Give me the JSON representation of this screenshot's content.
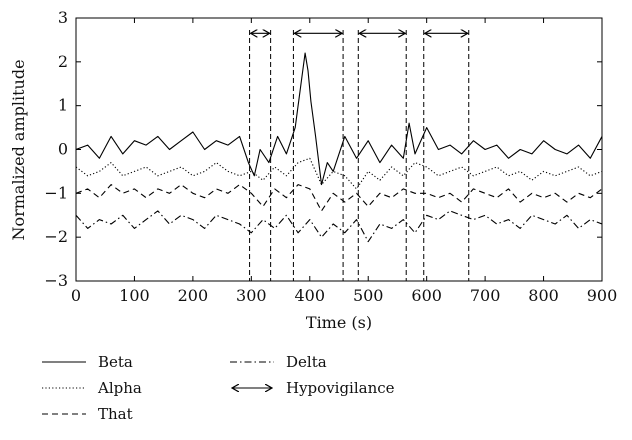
{
  "chart_data": {
    "type": "line",
    "title": "",
    "xlabel": "Time (s)",
    "ylabel": "Normalized amplitude",
    "xlim": [
      0,
      900
    ],
    "ylim": [
      -3,
      3
    ],
    "x_ticks": [
      0,
      100,
      200,
      300,
      400,
      500,
      600,
      700,
      800,
      900
    ],
    "y_ticks": [
      -3,
      -2,
      -1,
      0,
      1,
      2,
      3
    ],
    "grid": false,
    "legend_position": "bottom",
    "series": [
      {
        "name": "Beta",
        "style": "solid",
        "color": "#000000",
        "x": [
          0,
          20,
          40,
          60,
          80,
          100,
          120,
          140,
          160,
          180,
          200,
          220,
          240,
          260,
          280,
          295,
          305,
          315,
          330,
          345,
          360,
          375,
          385,
          392,
          397,
          402,
          410,
          420,
          430,
          440,
          460,
          480,
          500,
          520,
          540,
          560,
          570,
          580,
          600,
          620,
          640,
          660,
          680,
          700,
          720,
          740,
          760,
          780,
          800,
          820,
          840,
          860,
          880,
          900
        ],
        "y": [
          0.0,
          0.1,
          -0.2,
          0.3,
          -0.1,
          0.2,
          0.1,
          0.3,
          0.0,
          0.2,
          0.4,
          0.0,
          0.2,
          0.1,
          0.3,
          -0.3,
          -0.6,
          0.0,
          -0.3,
          0.3,
          -0.1,
          0.5,
          1.5,
          2.2,
          1.8,
          1.1,
          0.3,
          -0.8,
          -0.3,
          -0.5,
          0.3,
          -0.2,
          0.2,
          -0.3,
          0.1,
          -0.2,
          0.6,
          -0.1,
          0.5,
          0.0,
          0.1,
          -0.1,
          0.2,
          0.0,
          0.1,
          -0.2,
          0.0,
          -0.1,
          0.2,
          0.0,
          -0.1,
          0.1,
          -0.2,
          0.3
        ]
      },
      {
        "name": "Alpha",
        "style": "dotted",
        "color": "#000000",
        "x": [
          0,
          20,
          40,
          60,
          80,
          100,
          120,
          140,
          160,
          180,
          200,
          220,
          240,
          260,
          280,
          300,
          320,
          340,
          360,
          380,
          400,
          420,
          440,
          460,
          480,
          500,
          520,
          540,
          560,
          580,
          600,
          620,
          640,
          660,
          680,
          700,
          720,
          740,
          760,
          780,
          800,
          820,
          840,
          860,
          880,
          900
        ],
        "y": [
          -0.4,
          -0.6,
          -0.5,
          -0.3,
          -0.6,
          -0.5,
          -0.4,
          -0.6,
          -0.5,
          -0.4,
          -0.6,
          -0.5,
          -0.3,
          -0.5,
          -0.6,
          -0.5,
          -0.7,
          -0.4,
          -0.6,
          -0.3,
          -0.2,
          -0.8,
          -0.5,
          -0.6,
          -0.9,
          -0.5,
          -0.7,
          -0.4,
          -0.6,
          -0.3,
          -0.4,
          -0.6,
          -0.5,
          -0.4,
          -0.6,
          -0.5,
          -0.4,
          -0.6,
          -0.5,
          -0.7,
          -0.5,
          -0.6,
          -0.5,
          -0.4,
          -0.6,
          -0.5
        ]
      },
      {
        "name": "That",
        "style": "dashed",
        "color": "#000000",
        "x": [
          0,
          20,
          40,
          60,
          80,
          100,
          120,
          140,
          160,
          180,
          200,
          220,
          240,
          260,
          280,
          300,
          320,
          340,
          360,
          380,
          400,
          420,
          440,
          460,
          480,
          500,
          520,
          540,
          560,
          580,
          600,
          620,
          640,
          660,
          680,
          700,
          720,
          740,
          760,
          780,
          800,
          820,
          840,
          860,
          880,
          900
        ],
        "y": [
          -1.0,
          -0.9,
          -1.1,
          -0.8,
          -1.0,
          -0.9,
          -1.1,
          -0.9,
          -1.0,
          -0.8,
          -1.0,
          -1.1,
          -0.9,
          -1.0,
          -0.8,
          -1.0,
          -1.3,
          -0.9,
          -1.1,
          -0.8,
          -0.9,
          -1.4,
          -1.0,
          -1.2,
          -1.0,
          -1.3,
          -1.0,
          -1.1,
          -0.9,
          -1.0,
          -1.0,
          -1.1,
          -1.0,
          -1.2,
          -0.9,
          -1.0,
          -1.1,
          -0.9,
          -1.2,
          -1.0,
          -1.1,
          -1.0,
          -1.2,
          -1.0,
          -1.1,
          -0.9
        ]
      },
      {
        "name": "Delta",
        "style": "dashdot",
        "color": "#000000",
        "x": [
          0,
          20,
          40,
          60,
          80,
          100,
          120,
          140,
          160,
          180,
          200,
          220,
          240,
          260,
          280,
          300,
          320,
          340,
          360,
          380,
          400,
          420,
          440,
          460,
          480,
          500,
          520,
          540,
          560,
          580,
          600,
          620,
          640,
          660,
          680,
          700,
          720,
          740,
          760,
          780,
          800,
          820,
          840,
          860,
          880,
          900
        ],
        "y": [
          -1.5,
          -1.8,
          -1.6,
          -1.7,
          -1.5,
          -1.8,
          -1.6,
          -1.4,
          -1.7,
          -1.5,
          -1.6,
          -1.8,
          -1.5,
          -1.6,
          -1.7,
          -1.9,
          -1.6,
          -1.8,
          -1.5,
          -1.9,
          -1.6,
          -2.0,
          -1.7,
          -1.9,
          -1.6,
          -2.1,
          -1.7,
          -1.8,
          -1.6,
          -1.9,
          -1.5,
          -1.6,
          -1.4,
          -1.5,
          -1.6,
          -1.5,
          -1.7,
          -1.6,
          -1.8,
          -1.5,
          -1.6,
          -1.7,
          -1.5,
          -1.8,
          -1.6,
          -1.7
        ]
      }
    ],
    "annotations": [
      {
        "name": "Hypovigilance",
        "type": "interval",
        "x_start": 297,
        "x_end": 333,
        "y": 2.65
      },
      {
        "name": "Hypovigilance",
        "type": "interval",
        "x_start": 372,
        "x_end": 457,
        "y": 2.65
      },
      {
        "name": "Hypovigilance",
        "type": "interval",
        "x_start": 483,
        "x_end": 565,
        "y": 2.65
      },
      {
        "name": "Hypovigilance",
        "type": "interval",
        "x_start": 595,
        "x_end": 672,
        "y": 2.65
      }
    ],
    "legend": [
      {
        "label": "Beta",
        "style": "solid"
      },
      {
        "label": "Alpha",
        "style": "dotted"
      },
      {
        "label": "That",
        "style": "dashed"
      },
      {
        "label": "Delta",
        "style": "dashdot"
      },
      {
        "label": "Hypovigilance",
        "style": "double-arrow"
      }
    ]
  }
}
